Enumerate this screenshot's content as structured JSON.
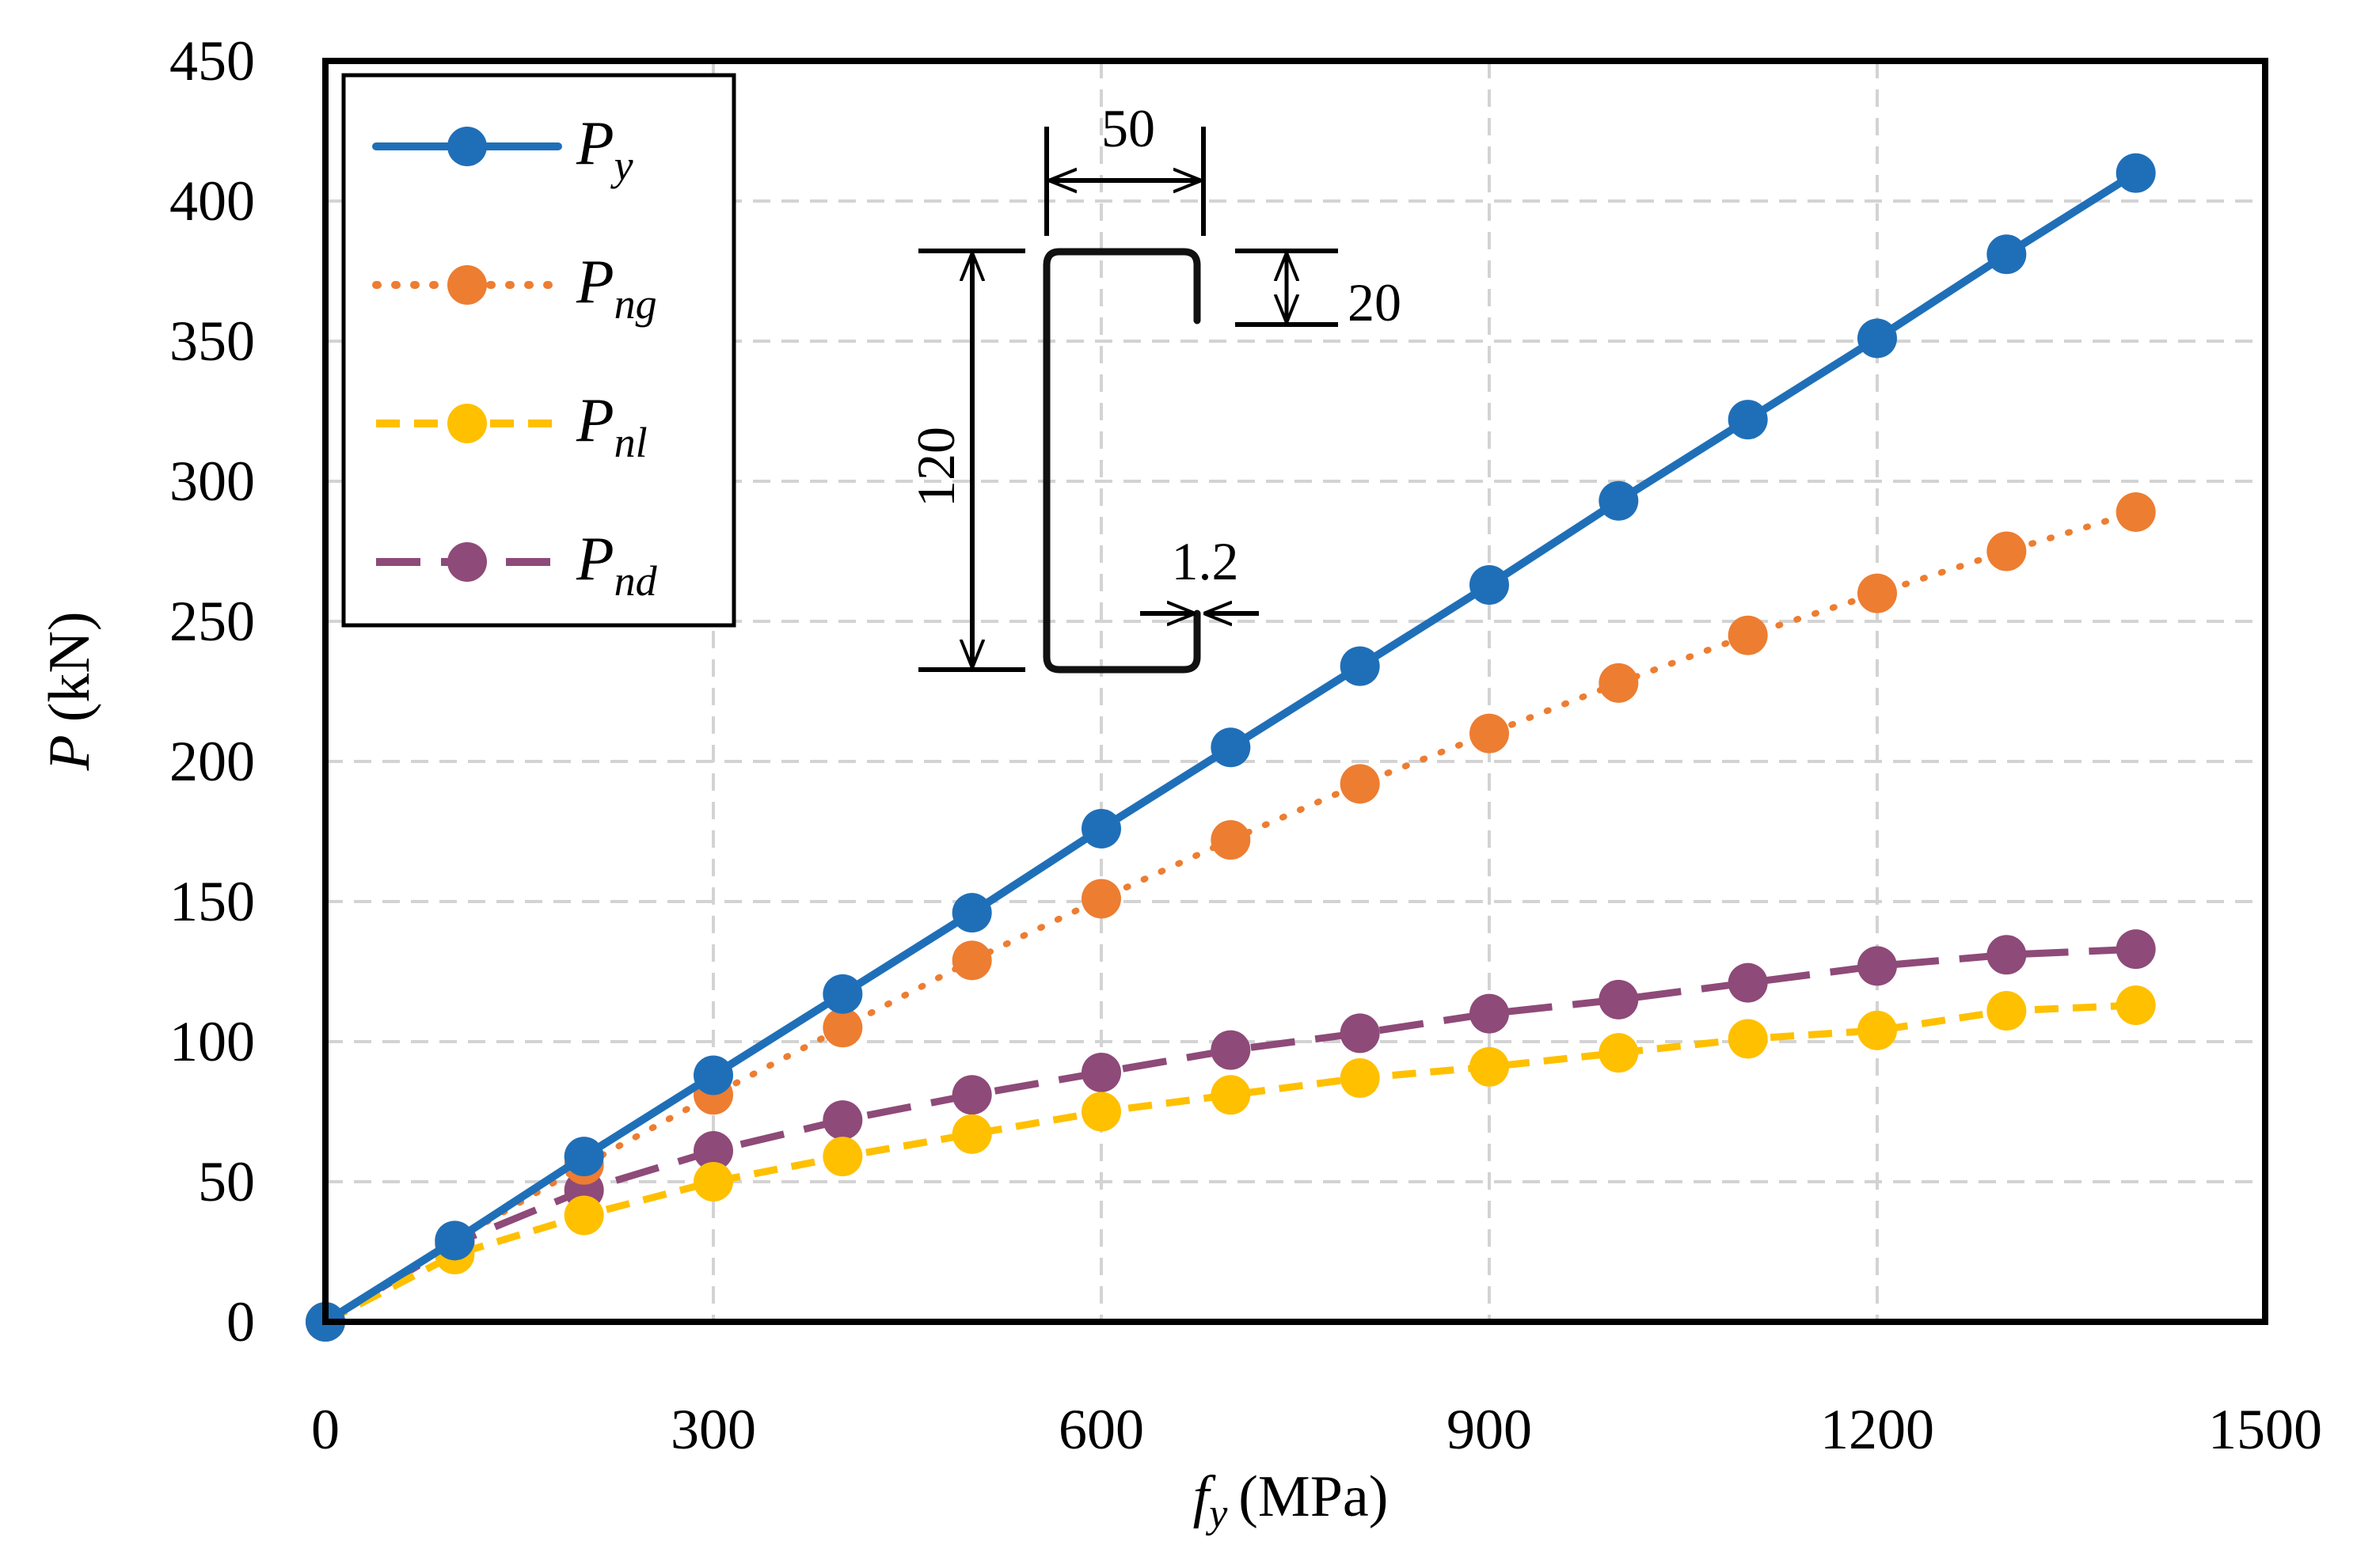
{
  "chart_data": {
    "type": "line",
    "title": "",
    "xlabel": {
      "main": "f",
      "sub": "y",
      "unit": "(MPa)"
    },
    "ylabel": {
      "main": "P",
      "unit": "(kN)"
    },
    "xlim": [
      0,
      1500
    ],
    "ylim": [
      0,
      450
    ],
    "xticks": [
      0,
      300,
      600,
      900,
      1200,
      1500
    ],
    "yticks": [
      0,
      50,
      100,
      150,
      200,
      250,
      300,
      350,
      400,
      450
    ],
    "grid": true,
    "legend_position": "top-left",
    "x": [
      0,
      100,
      200,
      300,
      400,
      500,
      600,
      700,
      800,
      900,
      1000,
      1100,
      1200,
      1300,
      1400
    ],
    "series": [
      {
        "name": "P",
        "sub": "y",
        "color": "#1f6fb8",
        "dash": "solid",
        "values": [
          0,
          29,
          59,
          88,
          117,
          146,
          176,
          205,
          234,
          263,
          293,
          322,
          351,
          381,
          410
        ]
      },
      {
        "name": "P",
        "sub": "ng",
        "color": "#ed7d31",
        "dash": "dotted",
        "values": [
          0,
          29,
          56,
          81,
          105,
          129,
          151,
          172,
          192,
          210,
          228,
          245,
          260,
          275,
          289
        ]
      },
      {
        "name": "P",
        "sub": "nl",
        "color": "#ffc000",
        "dash": "dashed",
        "values": [
          0,
          24,
          38,
          50,
          59,
          67,
          75,
          81,
          87,
          91,
          96,
          101,
          104,
          111,
          113
        ]
      },
      {
        "name": "P",
        "sub": "nd",
        "color": "#8e4a78",
        "dash": "longdash",
        "values": [
          0,
          28,
          47,
          61,
          72,
          81,
          89,
          97,
          103,
          110,
          115,
          121,
          127,
          131,
          133
        ]
      }
    ],
    "annotations": {
      "section_dimensions": {
        "width": "50",
        "lip": "20",
        "depth": "120",
        "thickness": "1.2"
      }
    }
  }
}
